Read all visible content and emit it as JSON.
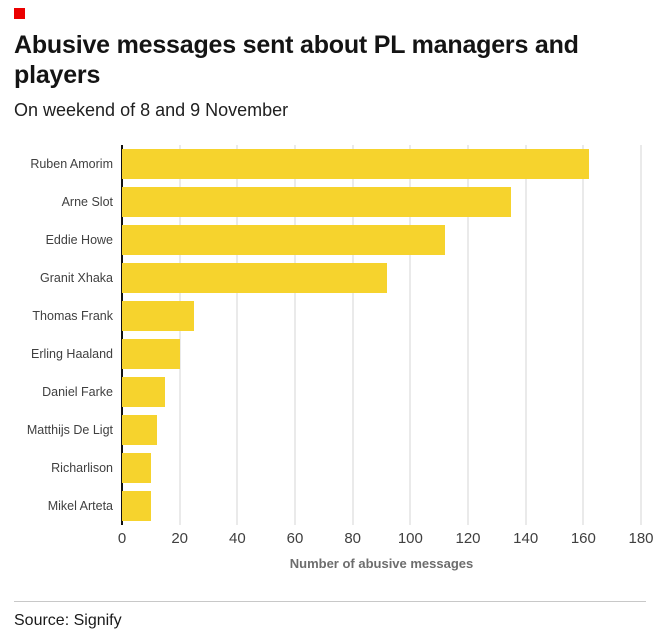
{
  "page": {
    "title": "Abusive messages sent about PL managers and players",
    "subtitle": "On weekend of 8 and 9 November",
    "source_text": "Source: Signify"
  },
  "colors": {
    "bar": "#F6D32D",
    "brand_red": "#EB0000",
    "gridline": "#D6D6D6",
    "axis": "#111111"
  },
  "chart_data": {
    "type": "bar",
    "orientation": "horizontal",
    "title": "Abusive messages sent about PL managers and players",
    "subtitle": "On weekend of 8 and 9 November",
    "categories": [
      "Ruben Amorim",
      "Arne Slot",
      "Eddie Howe",
      "Granit Xhaka",
      "Thomas Frank",
      "Erling Haaland",
      "Daniel Farke",
      "Matthijs De Ligt",
      "Richarlison",
      "Mikel Arteta"
    ],
    "values": [
      162,
      135,
      112,
      92,
      25,
      20,
      15,
      12,
      10,
      10
    ],
    "xlabel": "Number of abusive messages",
    "ylabel": "",
    "xlim": [
      0,
      180
    ],
    "xticks": [
      0,
      20,
      40,
      60,
      80,
      100,
      120,
      140,
      160,
      180
    ],
    "grid": "vertical",
    "legend": "none",
    "source": "Signify"
  }
}
